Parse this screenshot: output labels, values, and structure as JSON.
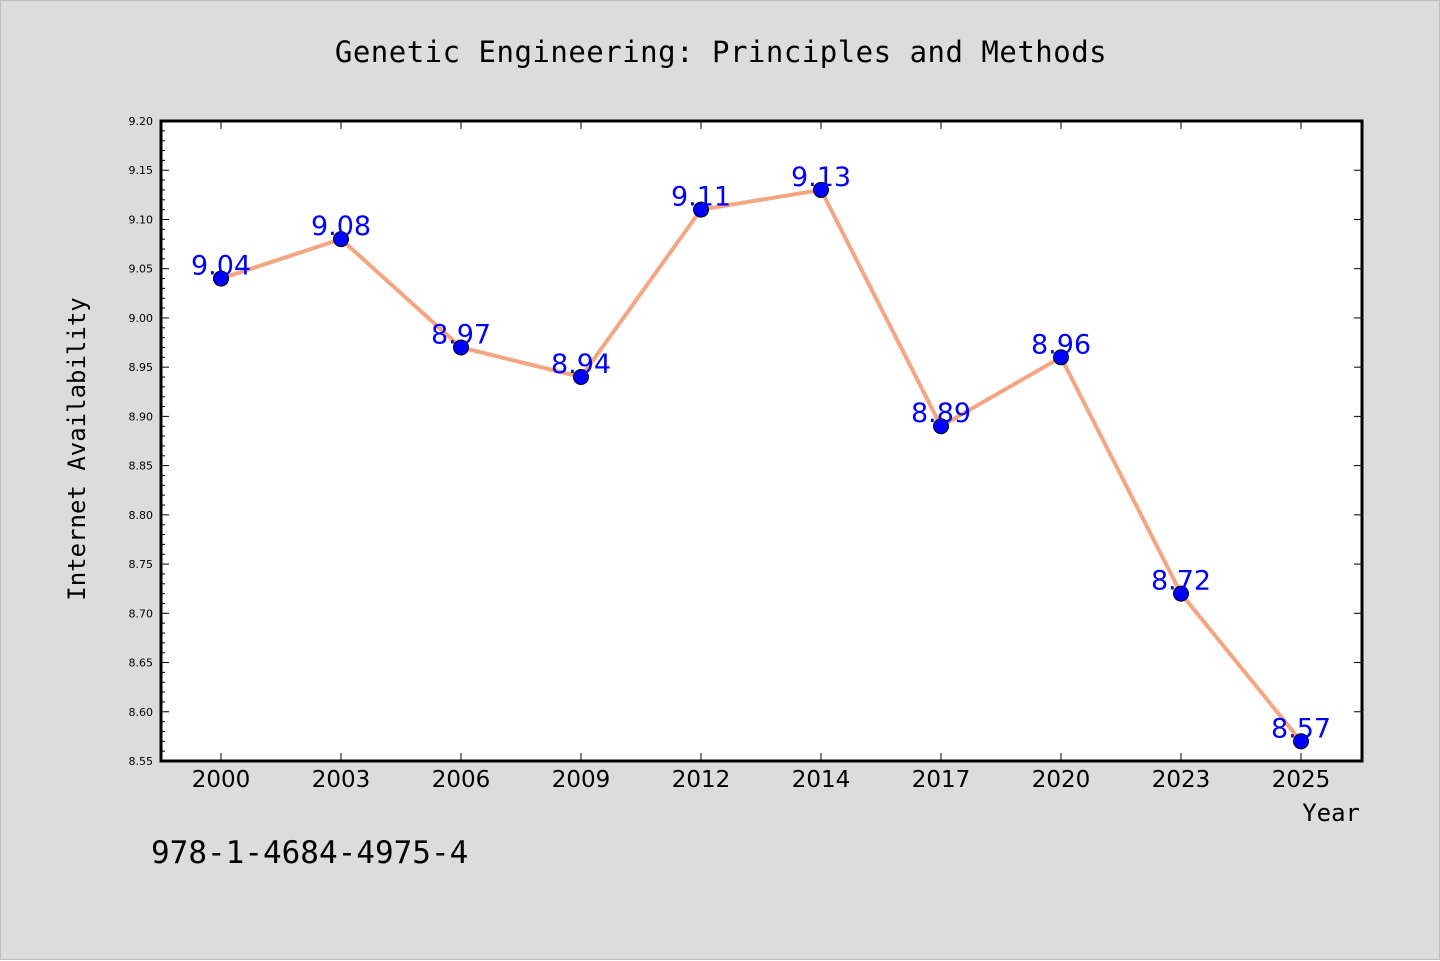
{
  "chart_data": {
    "type": "line",
    "title": "Genetic Engineering: Principles and Methods",
    "xlabel": "Year",
    "ylabel": "Internet Availability",
    "categories": [
      "2000",
      "2003",
      "2006",
      "2009",
      "2012",
      "2014",
      "2017",
      "2020",
      "2023",
      "2025"
    ],
    "series": [
      {
        "values": [
          9.04,
          9.08,
          8.97,
          8.94,
          9.11,
          9.13,
          8.89,
          8.96,
          8.72,
          8.57
        ],
        "labels": [
          "9.04",
          "9.08",
          "8.97",
          "8.94",
          "9.11",
          "9.13",
          "8.89",
          "8.96",
          "8.72",
          "8.57"
        ]
      }
    ],
    "ylim": [
      8.55,
      9.2
    ],
    "yticks": [
      "8.55",
      "8.60",
      "8.65",
      "8.70",
      "8.75",
      "8.80",
      "8.85",
      "8.90",
      "8.95",
      "9.00",
      "9.05",
      "9.10",
      "9.15",
      "9.20"
    ],
    "grid": false,
    "legend": "none",
    "colors": {
      "line": "#f4a582",
      "marker": "#0000ff",
      "data_label": "#0000ff",
      "background": "#dcdcdc",
      "plot_background": "#ffffff"
    }
  },
  "annotation": {
    "isbn": "978-1-4684-4975-4"
  }
}
